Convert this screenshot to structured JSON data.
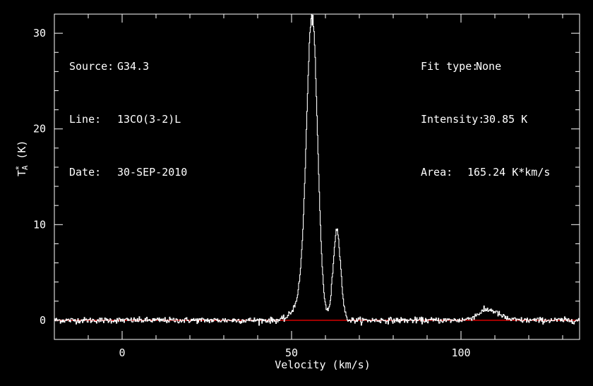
{
  "header_left": {
    "source_label": "Source:",
    "source_value": "G34.3",
    "line_label": "Line:",
    "line_value": "13CO(3-2)L",
    "date_label": "Date:",
    "date_value": "30-SEP-2010"
  },
  "header_right": {
    "fit_label": "Fit type:",
    "fit_value": "None",
    "intensity_label": "Intensity:",
    "intensity_value": "30.85 K",
    "area_label": "Area:",
    "area_value": "165.24 K*km/s"
  },
  "axes": {
    "xlabel": "Velocity (km/s)",
    "ylabel_main": "T",
    "ylabel_sub": "A",
    "ylabel_sup": "*",
    "ylabel_unit": "(K)"
  },
  "colors": {
    "background": "#000000",
    "spectrum": "#ffffff",
    "baseline": "#ff0000",
    "frame": "#ffffff"
  },
  "chart_data": {
    "type": "line",
    "xlabel": "Velocity (km/s)",
    "ylabel": "T_A* (K)",
    "xlim": [
      -20,
      135
    ],
    "ylim": [
      -2,
      32
    ],
    "xticks": [
      0,
      50,
      100
    ],
    "yticks": [
      0,
      10,
      20,
      30
    ],
    "grid": false,
    "baseline": 0,
    "series": [
      {
        "components": [
          {
            "center": 56.0,
            "amplitude": 30.5,
            "sigma": 1.6
          },
          {
            "center": 63.3,
            "amplitude": 9.5,
            "sigma": 1.1
          },
          {
            "center": 53.5,
            "amplitude": 2.5,
            "sigma": 2.5
          },
          {
            "center": 108.0,
            "amplitude": 1.1,
            "sigma": 3.0
          }
        ],
        "noise_rms": 0.15,
        "x_start": -20,
        "x_end": 135,
        "n_points": 900,
        "peak": {
          "x": 56.0,
          "y": 30.85
        }
      }
    ]
  }
}
